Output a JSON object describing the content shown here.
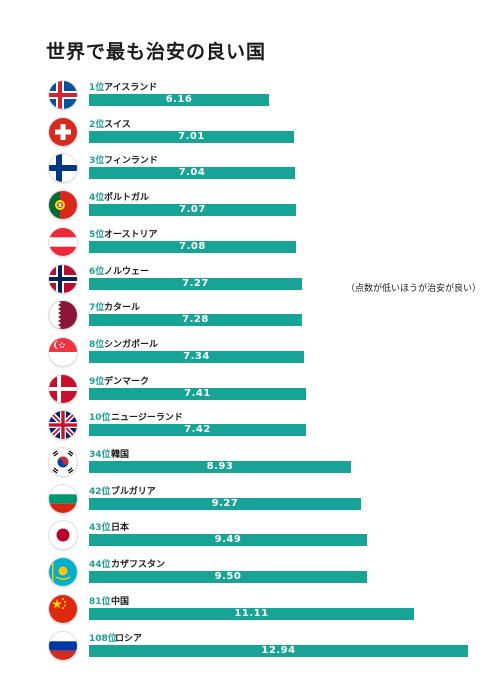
{
  "title": "世界で最も治安の良い国",
  "note": "（点数が低いほうが治安が良い）",
  "colors": {
    "bar": "#17a496",
    "rank": "#1e9f93"
  },
  "chart_data": {
    "type": "bar",
    "orientation": "horizontal",
    "title": "世界で最も治安の良い国",
    "annotation": "（点数が低いほうが治安が良い）",
    "xlim": [
      0,
      12.94
    ],
    "rows": [
      {
        "rank": "1位",
        "country": "アイスランド",
        "value": 6.16,
        "flag": "iceland-flag-icon"
      },
      {
        "rank": "2位",
        "country": "スイス",
        "value": 7.01,
        "flag": "switzerland-flag-icon"
      },
      {
        "rank": "3位",
        "country": "フィンランド",
        "value": 7.04,
        "flag": "finland-flag-icon"
      },
      {
        "rank": "4位",
        "country": "ポルトガル",
        "value": 7.07,
        "flag": "portugal-flag-icon"
      },
      {
        "rank": "5位",
        "country": "オーストリア",
        "value": 7.08,
        "flag": "austria-flag-icon"
      },
      {
        "rank": "6位",
        "country": "ノルウェー",
        "value": 7.27,
        "flag": "norway-flag-icon"
      },
      {
        "rank": "7位",
        "country": "カタール",
        "value": 7.28,
        "flag": "qatar-flag-icon"
      },
      {
        "rank": "8位",
        "country": "シンガポール",
        "value": 7.34,
        "flag": "singapore-flag-icon"
      },
      {
        "rank": "9位",
        "country": "デンマーク",
        "value": 7.41,
        "flag": "denmark-flag-icon"
      },
      {
        "rank": "10位",
        "country": "ニュージーランド",
        "value": 7.42,
        "flag": "new-zealand-flag-icon"
      },
      {
        "rank": "34位",
        "country": "韓国",
        "value": 8.93,
        "flag": "south-korea-flag-icon"
      },
      {
        "rank": "42位",
        "country": "ブルガリア",
        "value": 9.27,
        "flag": "bulgaria-flag-icon"
      },
      {
        "rank": "43位",
        "country": "日本",
        "value": 9.49,
        "flag": "japan-flag-icon"
      },
      {
        "rank": "44位",
        "country": "カザフスタン",
        "value": 9.5,
        "flag": "kazakhstan-flag-icon"
      },
      {
        "rank": "81位",
        "country": "中国",
        "value": 11.11,
        "flag": "china-flag-icon"
      },
      {
        "rank": "108位",
        "country": "ロシア",
        "value": 12.94,
        "flag": "russia-flag-icon"
      }
    ]
  }
}
